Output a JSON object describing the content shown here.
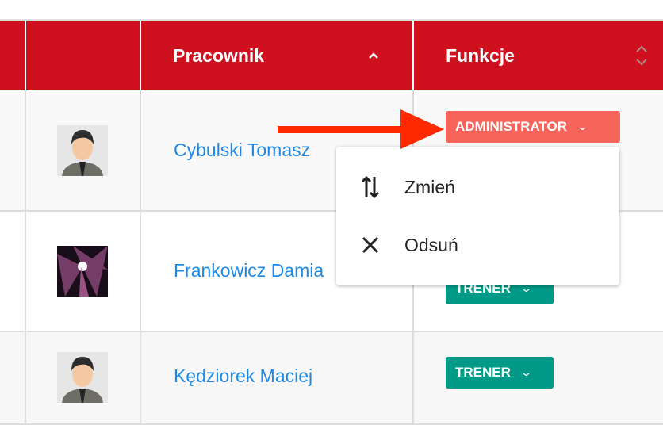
{
  "table": {
    "headers": {
      "pracownik": "Pracownik",
      "funkcje": "Funkcje"
    },
    "sort_icons": {
      "pracownik": "chevron-up-icon",
      "funkcje": "sort-icon"
    },
    "rows": [
      {
        "avatar": "male-avatar",
        "name": "Cybulski Tomasz",
        "role": "ADMINISTRATOR",
        "role_color": "#f7645c"
      },
      {
        "avatar": "abstract-photo",
        "name": "Frankowicz Damia",
        "role": "TRENER",
        "role_color": "#009a86"
      },
      {
        "avatar": "male-avatar",
        "name": "Kędziorek Maciej",
        "role": "TRENER",
        "role_color": "#009a86"
      }
    ]
  },
  "menu": {
    "items": [
      {
        "label": "Zmień",
        "icon": "swap-vertical-icon"
      },
      {
        "label": "Odsuń",
        "icon": "close-icon"
      }
    ]
  },
  "colors": {
    "header": "#cf101f",
    "link": "#1e88e5",
    "annotation_arrow": "#ff2a00"
  }
}
